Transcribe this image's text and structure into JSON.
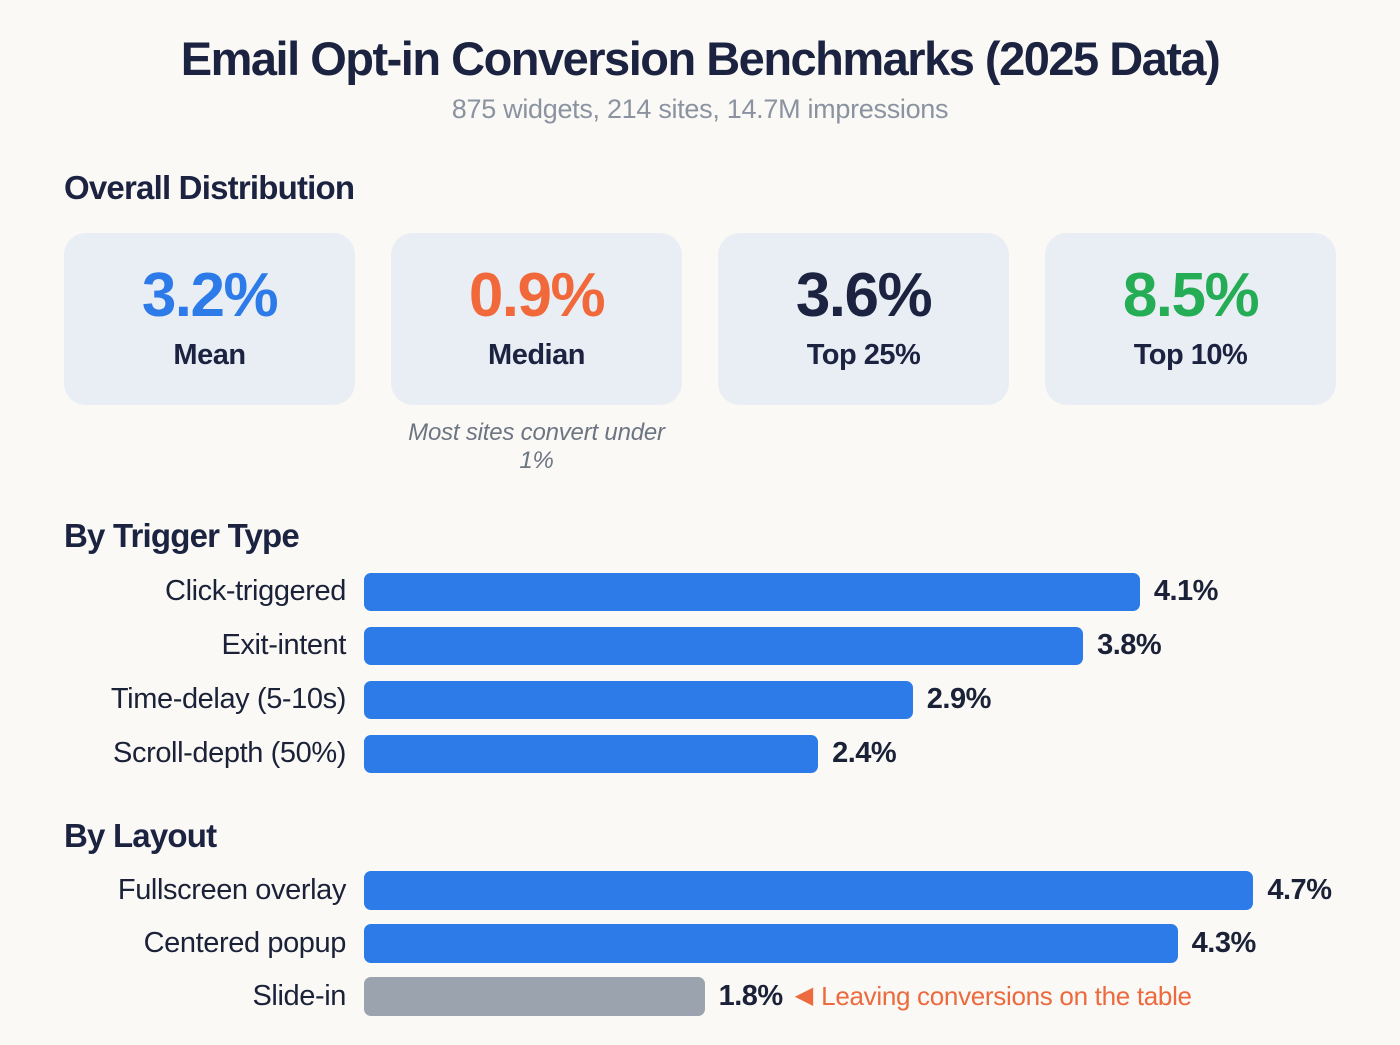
{
  "page": {
    "title": "Email Opt-in Conversion Benchmarks (2025 Data)",
    "subtitle": "875 widgets, 214 sites, 14.7M impressions"
  },
  "colors": {
    "background": "#faf9f6",
    "navy": "#1c2341",
    "blue": "#2d7be9",
    "orange": "#f1683b",
    "green": "#25ad56",
    "gray_bar": "#9aa3ae",
    "annotation_orange": "#ec6a3d",
    "card_background": "#e9edf4"
  },
  "overall": {
    "heading": "Overall Distribution",
    "stats": [
      {
        "value": "3.2%",
        "label": "Mean",
        "color": "#2d7be9"
      },
      {
        "value": "0.9%",
        "label": "Median",
        "color": "#f1683b"
      },
      {
        "value": "3.6%",
        "label": "Top 25%",
        "color": "#1c2341"
      },
      {
        "value": "8.5%",
        "label": "Top 10%",
        "color": "#25ad56"
      }
    ],
    "note": "Most sites convert under 1%"
  },
  "chart_data": [
    {
      "type": "bar",
      "orientation": "horizontal",
      "title": "By Trigger Type",
      "categories": [
        "Click-triggered",
        "Exit-intent",
        "Time-delay (5-10s)",
        "Scroll-depth (50%)"
      ],
      "values": [
        4.1,
        3.8,
        2.9,
        2.4
      ],
      "value_labels": [
        "4.1%",
        "3.8%",
        "2.9%",
        "2.4%"
      ],
      "unit": "%",
      "xlim": [
        0,
        4.7
      ],
      "grid": false,
      "legend": "none",
      "bar_color": "#2d7be9"
    },
    {
      "type": "bar",
      "orientation": "horizontal",
      "title": "By Layout",
      "categories": [
        "Fullscreen overlay",
        "Centered popup",
        "Slide-in"
      ],
      "values": [
        4.7,
        4.3,
        1.8
      ],
      "value_labels": [
        "4.7%",
        "4.3%",
        "1.8%"
      ],
      "unit": "%",
      "xlim": [
        0,
        4.7
      ],
      "grid": false,
      "legend": "none",
      "bar_colors": [
        "#2d7be9",
        "#2d7be9",
        "#9aa3ae"
      ],
      "annotation": {
        "marker": "◀",
        "text": "Leaving conversions on the table",
        "color": "#ec6a3d",
        "target": "Slide-in"
      }
    }
  ]
}
